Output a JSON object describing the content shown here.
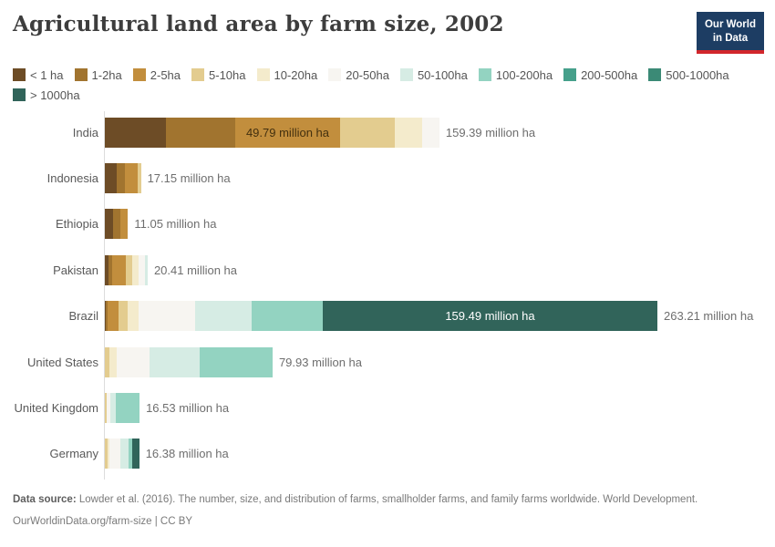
{
  "header": {
    "title": "Agricultural land area by farm size, 2002",
    "logo_line1": "Our World",
    "logo_line2": "in Data",
    "logo_bg": "#1d3d63",
    "logo_accent": "#d2262c"
  },
  "chart_data": {
    "type": "bar",
    "orientation": "horizontal_stacked",
    "unit": "million ha",
    "legend_position": "top",
    "grid": false,
    "size_categories": [
      "< 1 ha",
      "1-2ha",
      "2-5ha",
      "5-10ha",
      "10-20ha",
      "20-50ha",
      "50-100ha",
      "100-200ha",
      "200-500ha",
      "500-1000ha",
      "> 1000ha"
    ],
    "colors": [
      "#6d4c26",
      "#a1742f",
      "#c28e3d",
      "#e3cc8f",
      "#f4ebcc",
      "#f7f5f1",
      "#d6ece4",
      "#93d3c1",
      "#46a08b",
      "#3b8a76",
      "#31645a"
    ],
    "countries": [
      {
        "name": "India",
        "total": 159.39,
        "total_label": "159.39 million ha",
        "values": [
          29.2,
          33.0,
          49.79,
          26.1,
          13.2,
          8.1,
          0,
          0,
          0,
          0,
          0
        ],
        "inside_label": {
          "segment_index": 2,
          "text": "49.79 million ha",
          "style": "dark"
        }
      },
      {
        "name": "Indonesia",
        "total": 17.15,
        "total_label": "17.15 million ha",
        "values": [
          5.5,
          3.9,
          6.2,
          1.55,
          0,
          0,
          0,
          0,
          0,
          0,
          0
        ]
      },
      {
        "name": "Ethiopia",
        "total": 11.05,
        "total_label": "11.05 million ha",
        "values": [
          4.0,
          3.6,
          3.45,
          0,
          0,
          0,
          0,
          0,
          0,
          0,
          0
        ]
      },
      {
        "name": "Pakistan",
        "total": 20.41,
        "total_label": "20.41 million ha",
        "values": [
          1.9,
          1.75,
          6.4,
          2.95,
          2.95,
          3.0,
          1.46,
          0,
          0,
          0,
          0
        ]
      },
      {
        "name": "Brazil",
        "total": 263.21,
        "total_label": "263.21 million ha",
        "values": [
          0.5,
          0.6,
          5.2,
          4.5,
          5.2,
          26.8,
          27.1,
          33.82,
          0,
          0,
          159.49
        ],
        "inside_label": {
          "segment_index": 10,
          "text": "159.49 million ha",
          "style": "light"
        }
      },
      {
        "name": "United States",
        "total": 79.93,
        "total_label": "79.93 million ha",
        "values": [
          0,
          0,
          0,
          2.3,
          3.2,
          15.6,
          24.2,
          34.63,
          0,
          0,
          0
        ]
      },
      {
        "name": "United Kingdom",
        "total": 16.53,
        "total_label": "16.53 million ha",
        "values": [
          0,
          0,
          0,
          0.9,
          0,
          1.7,
          2.6,
          11.33,
          0,
          0,
          0
        ]
      },
      {
        "name": "Germany",
        "total": 16.38,
        "total_label": "16.38 million ha",
        "values": [
          0,
          0,
          0,
          1.1,
          1.1,
          5.0,
          4.2,
          1.5,
          0,
          0,
          3.48
        ]
      }
    ]
  },
  "footer": {
    "source_prefix": "Data source:",
    "source_text": " Lowder et al. (2016). The number, size, and distribution of farms, smallholder farms, and family farms worldwide. World Development.",
    "link_line": "OurWorldinData.org/farm-size | CC BY"
  }
}
